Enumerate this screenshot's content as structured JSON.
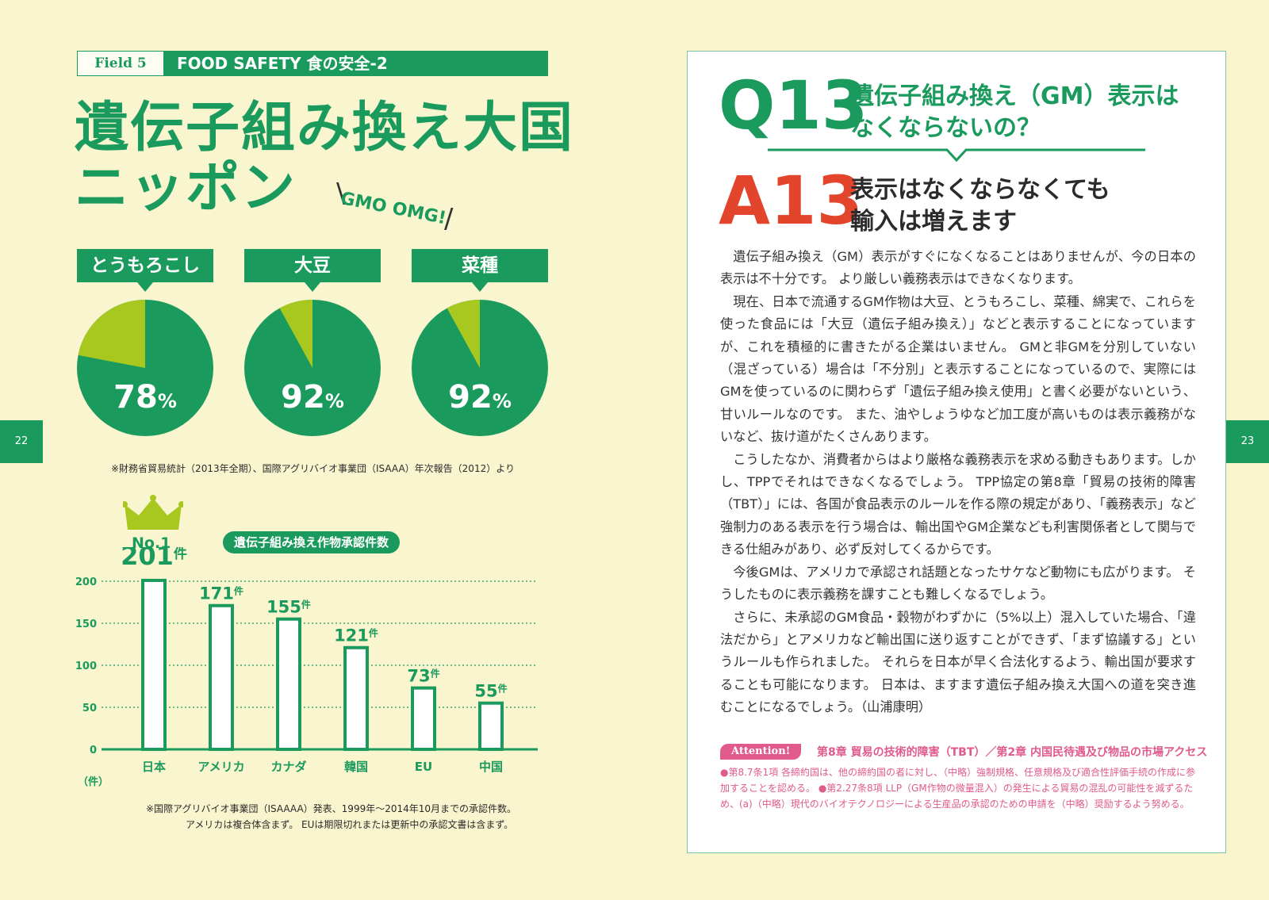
{
  "header": {
    "field_label": "Field 5",
    "section_title": "FOOD SAFETY  食の安全-2"
  },
  "title": {
    "line1": "遺伝子組み換え大国",
    "line2": "ニッポン",
    "tagline": "GMO OMG!",
    "slash_left": "\\",
    "slash_right": "/"
  },
  "pies": [
    {
      "label": "とうもろこし",
      "percent": 78,
      "pct_text": "78",
      "unit": "%"
    },
    {
      "label": "大豆",
      "percent": 92,
      "pct_text": "92",
      "unit": "%"
    },
    {
      "label": "菜種",
      "percent": 92,
      "pct_text": "92",
      "unit": "%"
    }
  ],
  "pie_source": "※財務省貿易統計（2013年全期）、国際アグリバイオ事業団（ISAAA）年次報告（2012）より",
  "colors": {
    "green": "#1a9a5c",
    "light_green": "#a8c820",
    "red": "#e2452c",
    "pink": "#e05a8c",
    "crown": "#a8c820"
  },
  "bar_header": {
    "rank": "No.1",
    "badge": "遺伝子組み換え作物承認件数"
  },
  "chart_data": {
    "type": "bar",
    "title": "遺伝子組み換え作物承認件数",
    "categories": [
      "日本",
      "アメリカ",
      "カナダ",
      "韓国",
      "EU",
      "中国"
    ],
    "values": [
      201,
      171,
      155,
      121,
      73,
      55
    ],
    "value_labels": [
      "201",
      "171",
      "155",
      "121",
      "73",
      "55"
    ],
    "value_unit": "件",
    "yticks": [
      "200",
      "150",
      "100",
      "50",
      "0"
    ],
    "ytick_values": [
      200,
      150,
      100,
      50,
      0
    ],
    "ylabel": "（件）",
    "ylim": [
      0,
      200
    ],
    "grid": true
  },
  "bar_source": {
    "line1": "※国際アグリバイオ事業団（ISAAAA）発表、1999年〜2014年10月までの承認件数。",
    "line2": "アメリカは複合体含まず。 EUは期限切れまたは更新中の承認文書は含まず。"
  },
  "pages": {
    "left": "22",
    "right": "23"
  },
  "question": {
    "mark": "Q13",
    "line1": "遺伝子組み換え（GM）表示は",
    "line2": "なくならないの？"
  },
  "answer": {
    "mark": "A13",
    "line1": "表示はなくならなくても",
    "line2": "輸入は増えます"
  },
  "body_paragraphs": [
    "遺伝子組み換え（GM）表示がすぐになくなることはありませんが、今の日本の表示は不十分です。 より厳しい義務表示はできなくなります。",
    "現在、日本で流通するGM作物は大豆、とうもろこし、菜種、綿実で、これらを使った食品には「大豆（遺伝子組み換え）」などと表示することになっていますが、これを積極的に書きたがる企業はいません。 GMと非GMを分別していない（混ざっている）場合は「不分別」と表示することになっているので、実際にはGMを使っているのに関わらず「遺伝子組み換え使用」と書く必要がないという、甘いルールなのです。 また、油やしょうゆなど加工度が高いものは表示義務がないなど、抜け道がたくさんあります。",
    "こうしたなか、消費者からはより厳格な義務表示を求める動きもあります。しかし、TPPでそれはできなくなるでしょう。 TPP協定の第8章「貿易の技術的障害（TBT）」には、各国が食品表示のルールを作る際の規定があり、「義務表示」など強制力のある表示を行う場合は、輸出国やGM企業なども利害関係者として関与できる仕組みがあり、必ず反対してくるからです。",
    "今後GMは、アメリカで承認され話題となったサケなど動物にも広がります。 そうしたものに表示義務を課すことも難しくなるでしょう。",
    "さらに、未承認のGM食品・穀物がわずかに（5%以上）混入していた場合、「違法だから」とアメリカなど輸出国に送り返すことができず、「まず協議する」というルールも作られました。 それらを日本が早く合法化するよう、輸出国が要求することも可能になります。 日本は、ますます遺伝子組み換え大国への道を突き進むことになるでしょう。（山浦康明）"
  ],
  "attention": {
    "badge": "Attention!",
    "title": "第8章  貿易の技術的障害（TBT）／第2章  内国民待遇及び物品の市場アクセス",
    "body": "●第8.7条1項 各締約国は、他の締約国の者に対し、（中略）強制規格、任意規格及び適合性評価手続の作成に参加することを認める。 ●第2.27条8項 LLP（GM作物の微量混入）の発生による貿易の混乱の可能性を減ずるため、(a)（中略）現代のバイオテクノロジーによる生産品の承認のための申請を（中略）奨励するよう努める。"
  }
}
